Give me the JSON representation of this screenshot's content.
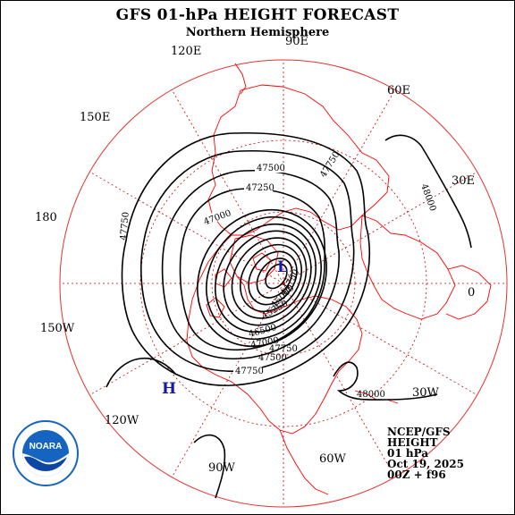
{
  "header": {
    "title": "GFS 01-hPa HEIGHT FORECAST",
    "subtitle": "Northern Hemisphere"
  },
  "longitude_labels": [
    "90E",
    "60E",
    "30E",
    "0",
    "30W",
    "60W",
    "90W",
    "120W",
    "150W",
    "180",
    "150E",
    "120E"
  ],
  "contour_labels": [
    "47500",
    "47750",
    "47250",
    "47000",
    "48000",
    "47750",
    "47750",
    "48000",
    "44750",
    "45000",
    "45250",
    "46500",
    "47000",
    "47500",
    "47750"
  ],
  "pressure_centers": [
    {
      "type": "low",
      "label": "L"
    },
    {
      "type": "high",
      "label": "H"
    }
  ],
  "info_block": {
    "source": "NCEP/GFS",
    "field": "HEIGHT",
    "level": "01 hPa",
    "date": "Oct 19, 2025",
    "run": "00Z + f96"
  },
  "logo": {
    "text": "NOARA"
  },
  "colors": {
    "coastline": "#ff0000",
    "grid": "#cc0000",
    "contour": "#000000",
    "low_high": "#1a1aa8",
    "logo_blue": "#1565c0"
  }
}
